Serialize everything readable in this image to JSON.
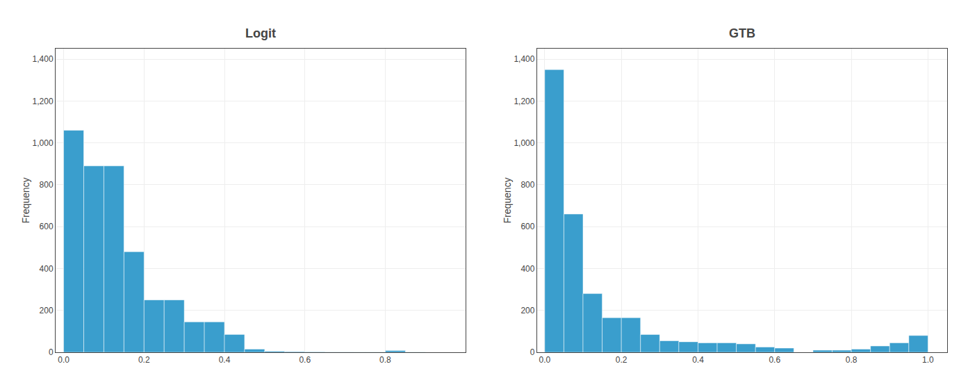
{
  "chart_data": [
    {
      "type": "histogram",
      "title": "Logit",
      "ylabel": "Frequency",
      "bins": [
        0.0,
        0.05,
        0.1,
        0.15,
        0.2,
        0.25,
        0.3,
        0.35,
        0.4,
        0.45,
        0.5,
        0.55,
        0.6,
        0.65,
        0.7,
        0.75,
        0.8,
        0.85,
        0.9,
        0.95,
        1.0
      ],
      "values": [
        1060,
        890,
        890,
        480,
        250,
        250,
        145,
        145,
        85,
        15,
        5,
        3,
        2,
        1,
        1,
        1,
        8,
        1,
        0,
        0
      ],
      "color": "#3a9ecd",
      "xlim": [
        -0.02,
        1.0
      ],
      "xticks": [
        {
          "value": 0.0,
          "label": "0.0"
        },
        0.2,
        0.4,
        0.6,
        0.8
      ],
      "ylim": [
        0,
        1450
      ],
      "yticks": [
        0,
        200,
        400,
        600,
        800,
        {
          "value": 1000,
          "label": "1,000"
        },
        {
          "value": 1200,
          "label": "1,200"
        },
        {
          "value": 1400,
          "label": "1,400"
        }
      ],
      "grid": true
    },
    {
      "type": "histogram",
      "title": "GTB",
      "ylabel": "Frequency",
      "bins": [
        0.0,
        0.05,
        0.1,
        0.15,
        0.2,
        0.25,
        0.3,
        0.35,
        0.4,
        0.45,
        0.5,
        0.55,
        0.6,
        0.65,
        0.7,
        0.75,
        0.8,
        0.85,
        0.9,
        0.95,
        1.0
      ],
      "values": [
        1350,
        660,
        280,
        165,
        165,
        85,
        55,
        50,
        45,
        45,
        40,
        25,
        20,
        0,
        10,
        10,
        15,
        30,
        45,
        80
      ],
      "color": "#3a9ecd",
      "xlim": [
        -0.02,
        1.05
      ],
      "xticks": [
        {
          "value": 0.0,
          "label": "0.0"
        },
        0.2,
        0.4,
        0.6,
        0.8,
        {
          "value": 1.0,
          "label": "1.0"
        }
      ],
      "ylim": [
        0,
        1450
      ],
      "yticks": [
        0,
        200,
        400,
        600,
        800,
        {
          "value": 1000,
          "label": "1,000"
        },
        {
          "value": 1200,
          "label": "1,200"
        },
        {
          "value": 1400,
          "label": "1,400"
        }
      ],
      "grid": true
    }
  ]
}
